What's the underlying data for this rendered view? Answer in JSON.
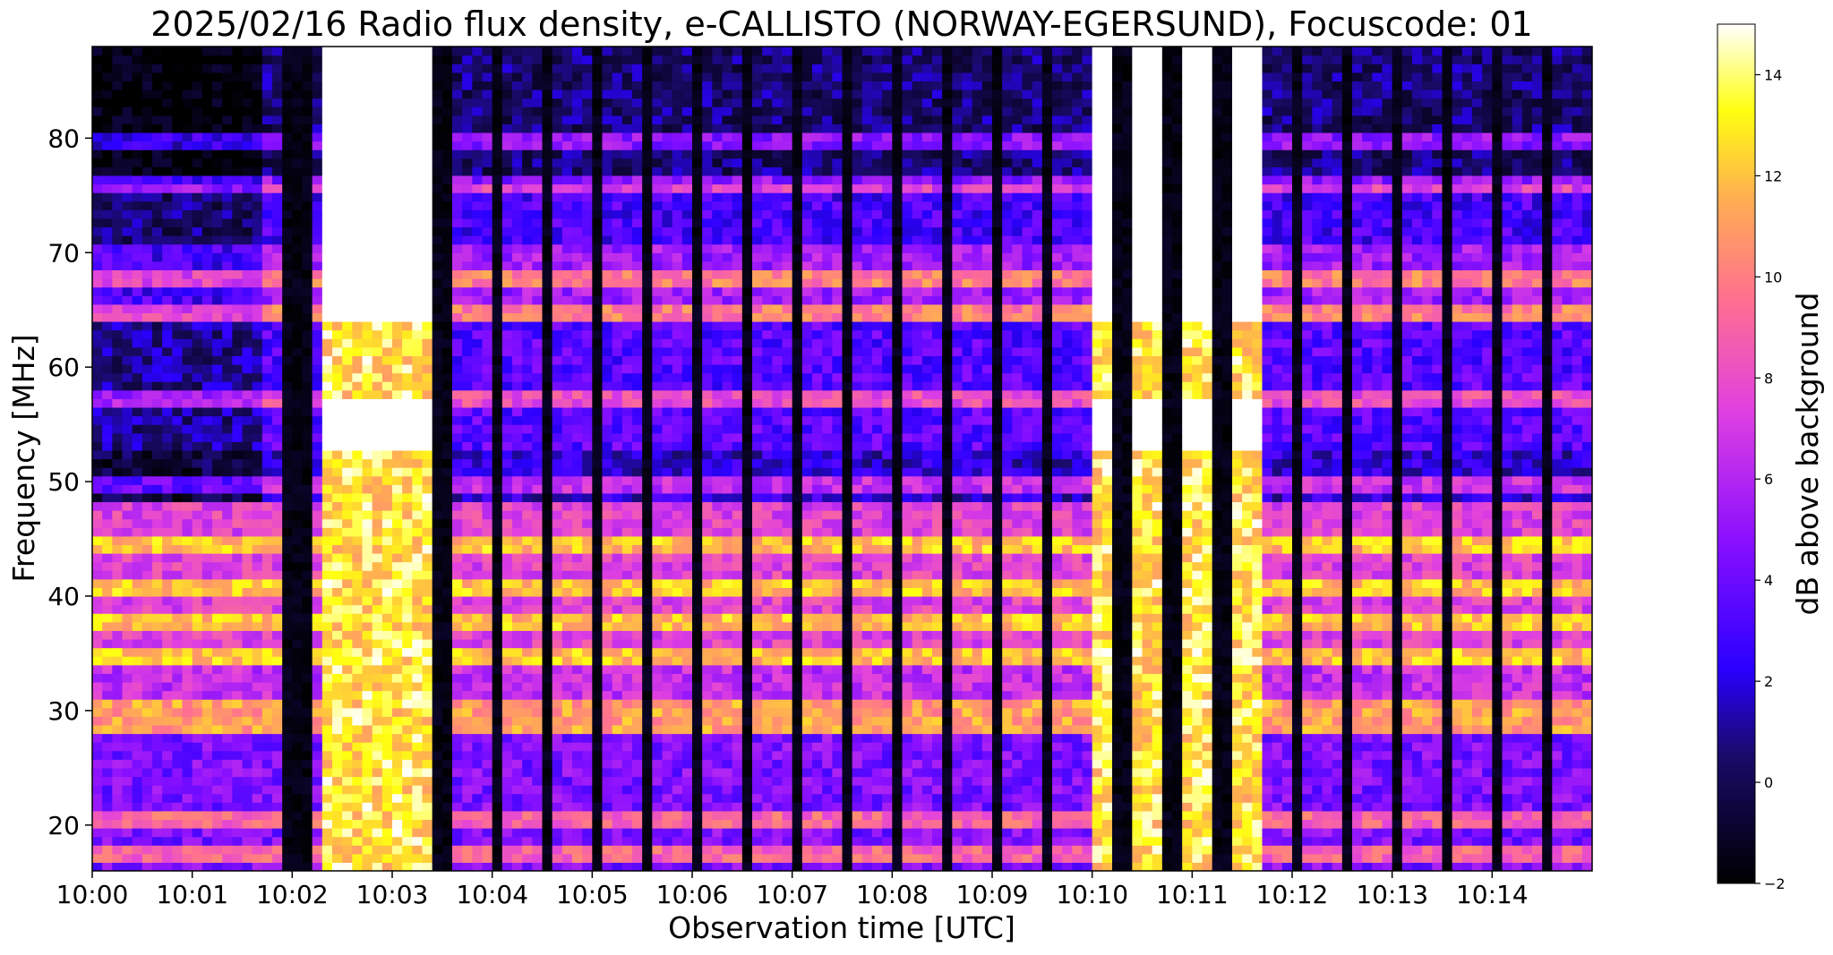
{
  "chart_data": {
    "type": "heatmap",
    "title": "2025/02/16  Radio flux density, e-CALLISTO (NORWAY-EGERSUND), Focuscode: 01",
    "xlabel": "Observation time [UTC]",
    "ylabel": "Frequency [MHz]",
    "colorbar_label": "dB above background",
    "colormap": "gnuplot2",
    "x_ticks": [
      "10:00",
      "10:01",
      "10:02",
      "10:03",
      "10:04",
      "10:05",
      "10:06",
      "10:07",
      "10:08",
      "10:09",
      "10:10",
      "10:11",
      "10:12",
      "10:13",
      "10:14"
    ],
    "x_range_minutes": [
      0,
      15
    ],
    "y_ticks": [
      20,
      30,
      40,
      50,
      60,
      70,
      80
    ],
    "ylim": [
      16,
      88
    ],
    "colorbar_ticks": [
      -2,
      0,
      2,
      4,
      6,
      8,
      10,
      12,
      14
    ],
    "clim": [
      -2,
      15
    ],
    "strong_bands_mhz": [
      17.5,
      20.5,
      28.5,
      30.5,
      35,
      37.5,
      41,
      44.5,
      50,
      57.5,
      65,
      68,
      76,
      80
    ],
    "saturated_periods_minutes": [
      [
        2.35,
        3.35
      ],
      [
        10.0,
        11.7
      ]
    ]
  }
}
